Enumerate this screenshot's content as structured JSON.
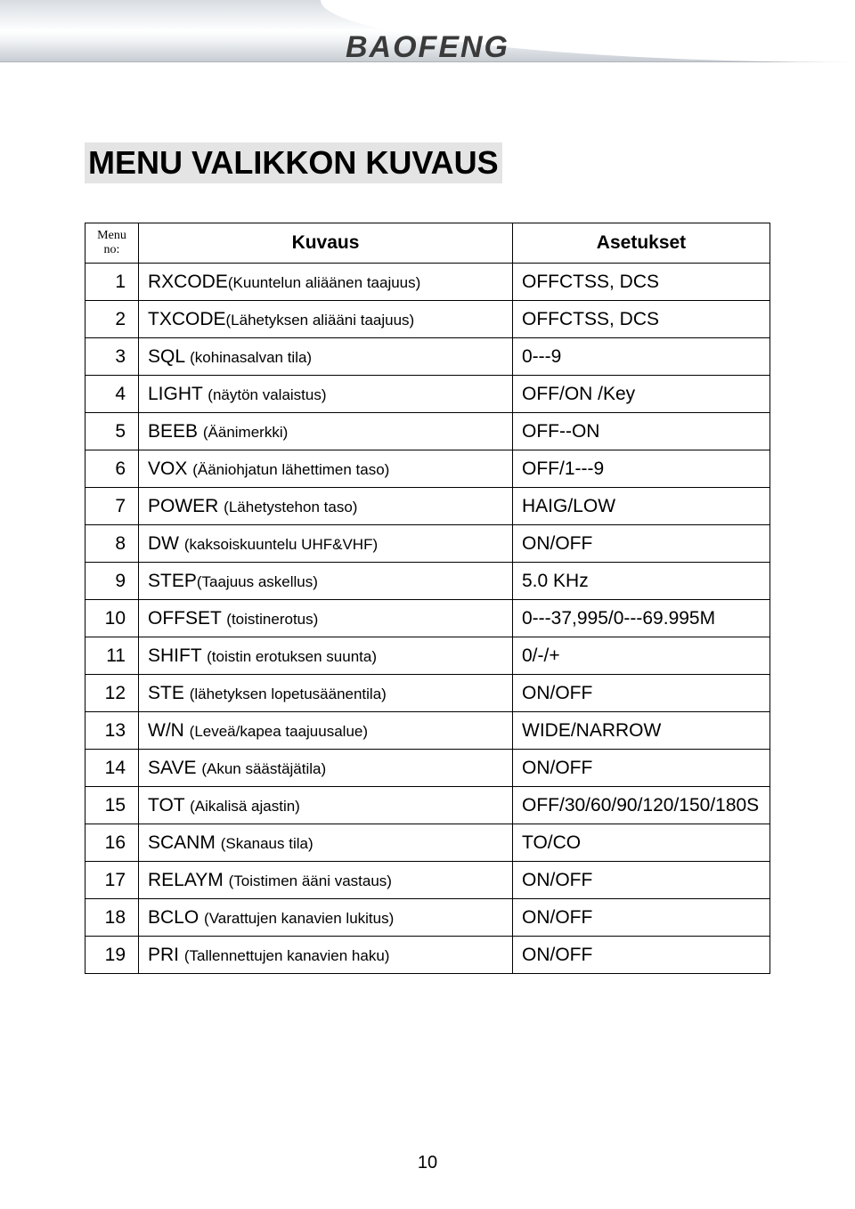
{
  "brand": "BAOFENG",
  "title": "MENU VALIKKON KUVAUS",
  "page_number": "10",
  "table": {
    "header": {
      "menu_no": "Menu no:",
      "kuvaus": "Kuvaus",
      "asetukset": "Asetukset"
    },
    "rows": [
      {
        "n": "1",
        "desc_main": "RXCODE",
        "desc_suffix": "(Kuuntelun aliäänen taajuus)",
        "set": "OFFCTSS, DCS"
      },
      {
        "n": "2",
        "desc_main": "TXCODE",
        "desc_suffix": "(Lähetyksen aliääni taajuus)",
        "set": "OFFCTSS, DCS"
      },
      {
        "n": "3",
        "desc_main": "SQL ",
        "desc_suffix": "(kohinasalvan tila)",
        "set": "0---9"
      },
      {
        "n": "4",
        "desc_main": "LIGHT ",
        "desc_suffix": "(näytön valaistus)",
        "set": "OFF/ON /Key"
      },
      {
        "n": "5",
        "desc_main": "BEEB ",
        "desc_suffix": "(Äänimerkki)",
        "set": "OFF--ON"
      },
      {
        "n": "6",
        "desc_main": "VOX ",
        "desc_suffix": "(Ääniohjatun lähettimen taso)",
        "set": "OFF/1---9"
      },
      {
        "n": "7",
        "desc_main": "POWER ",
        "desc_suffix": "(Lähetystehon taso)",
        "set": "HAIG/LOW"
      },
      {
        "n": "8",
        "desc_main": "DW ",
        "desc_suffix": "(kaksoiskuuntelu UHF&VHF)",
        "set": "ON/OFF"
      },
      {
        "n": "9",
        "desc_main": "STEP",
        "desc_suffix": "(Taajuus askellus)",
        "set": "5.0 KHz"
      },
      {
        "n": "10",
        "desc_main": "OFFSET ",
        "desc_suffix": "(toistinerotus)",
        "set": "0---37,995/0---69.995M"
      },
      {
        "n": "11",
        "desc_main": "SHIFT ",
        "desc_suffix": "(toistin erotuksen suunta)",
        "set": "0/-/+"
      },
      {
        "n": "12",
        "desc_main": "STE ",
        "desc_suffix": "(lähetyksen lopetusäänentila)",
        "set": "ON/OFF"
      },
      {
        "n": "13",
        "desc_main": "W/N ",
        "desc_suffix": "(Leveä/kapea taajuusalue)",
        "set": "WIDE/NARROW"
      },
      {
        "n": "14",
        "desc_main": "SAVE ",
        "desc_suffix": "(Akun säästäjätila)",
        "set": "ON/OFF"
      },
      {
        "n": "15",
        "desc_main": "TOT ",
        "desc_suffix": "(Aikalisä ajastin)",
        "set": "OFF/30/60/90/120/150/180S"
      },
      {
        "n": "16",
        "desc_main": "SCANM ",
        "desc_suffix": "(Skanaus tila)",
        "set": "TO/CO"
      },
      {
        "n": "17",
        "desc_main": "RELAYM ",
        "desc_suffix": "(Toistimen ääni vastaus)",
        "set": "ON/OFF"
      },
      {
        "n": "18",
        "desc_main": "BCLO ",
        "desc_suffix": "(Varattujen kanavien lukitus)",
        "set": "ON/OFF"
      },
      {
        "n": "19",
        "desc_main": "PRI ",
        "desc_suffix": "(Tallennettujen kanavien haku)",
        "set": "ON/OFF"
      }
    ]
  },
  "colors": {
    "title_bg": "#e4e4e4",
    "border": "#000000",
    "text": "#000000",
    "page_bg": "#ffffff"
  }
}
